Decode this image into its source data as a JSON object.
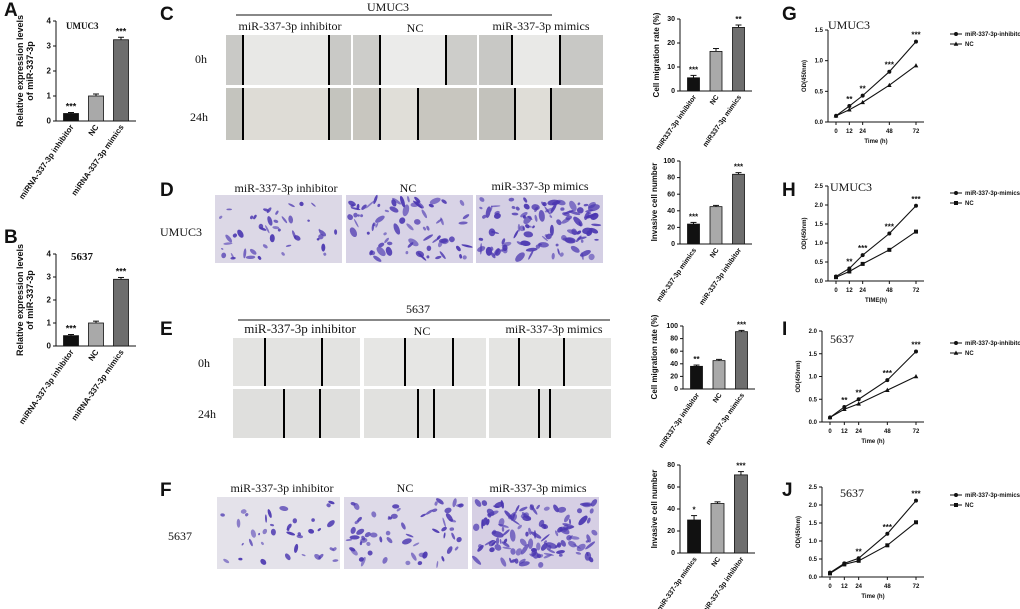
{
  "panel_labels": {
    "A": "A",
    "B": "B",
    "C": "C",
    "D": "D",
    "E": "E",
    "F": "F",
    "G": "G",
    "H": "H",
    "I": "I",
    "J": "J"
  },
  "panel_c": {
    "title": "UMUC3",
    "columns": [
      "miR-337-3p inhibitor",
      "NC",
      "miR-337-3p mimics"
    ],
    "rows": [
      "0h",
      "24h"
    ]
  },
  "panel_d": {
    "row_label": "UMUC3",
    "columns": [
      "miR-337-3p inhibitor",
      "NC",
      "miR-337-3p mimics"
    ]
  },
  "panel_e": {
    "title": "5637",
    "columns": [
      "miR-337-3p inhibitor",
      "NC",
      "miR-337-3p mimics"
    ],
    "rows": [
      "0h",
      "24h"
    ]
  },
  "panel_f": {
    "row_label": "5637",
    "columns": [
      "miR-337-3p inhibitor",
      "NC",
      "miR-337-3p mimics"
    ]
  },
  "colors": {
    "dark_bar": "#111111",
    "nc_bar": "#a9a9a9",
    "high_bar": "#6e6e6e",
    "dye": "#4a36b0"
  },
  "chart_data": [
    {
      "id": "A",
      "type": "bar",
      "inset_label": "UMUC3",
      "ylabel": "Relative expression levels\nof miR-337-3p",
      "categories": [
        "miRNA-337-3p inhibitor",
        "NC",
        "miRNA-337-3p mimics"
      ],
      "values": [
        0.3,
        1.0,
        3.25
      ],
      "errors": [
        0.04,
        0.08,
        0.1
      ],
      "significance": [
        "***",
        "",
        "***"
      ],
      "ylim": [
        0,
        4
      ],
      "yticks": [
        0,
        1,
        2,
        3,
        4
      ]
    },
    {
      "id": "B",
      "type": "bar",
      "inset_label": "5637",
      "ylabel": "Relative expression levels\nof miR-337-3p",
      "categories": [
        "miRNA-337-3p inhibitor",
        "NC",
        "miRNA-337-3p mimics"
      ],
      "values": [
        0.45,
        1.0,
        2.9
      ],
      "errors": [
        0.05,
        0.08,
        0.08
      ],
      "significance": [
        "***",
        "",
        "***"
      ],
      "ylim": [
        0,
        4
      ],
      "yticks": [
        0,
        1,
        2,
        3,
        4
      ]
    },
    {
      "id": "C",
      "type": "bar",
      "ylabel": "Cell migration rate (%)",
      "categories": [
        "miR337-3p inhibitor",
        "NC",
        "miR337-3p mimics"
      ],
      "values": [
        5.5,
        16.5,
        26.5
      ],
      "errors": [
        1.0,
        1.2,
        1.0
      ],
      "significance": [
        "***",
        "",
        "**"
      ],
      "ylim": [
        0,
        30
      ],
      "yticks": [
        0,
        10,
        20,
        30
      ]
    },
    {
      "id": "D",
      "type": "bar",
      "ylabel": "Invasive cell number",
      "categories": [
        "miR-337-3p mimics",
        "NC",
        "miR-337-3p inhibitor"
      ],
      "values": [
        24,
        45,
        84
      ],
      "errors": [
        2,
        1.5,
        2
      ],
      "significance": [
        "***",
        "",
        "***"
      ],
      "ylim": [
        0,
        100
      ],
      "yticks": [
        0,
        20,
        40,
        60,
        80,
        100
      ]
    },
    {
      "id": "E",
      "type": "bar",
      "ylabel": "Cell migration rate (%)",
      "categories": [
        "miR337-3p inhibitor",
        "NC",
        "miR337-3p mimics"
      ],
      "values": [
        36,
        45,
        91
      ],
      "errors": [
        2,
        2,
        2
      ],
      "significance": [
        "**",
        "",
        "***"
      ],
      "ylim": [
        0,
        100
      ],
      "yticks": [
        0,
        20,
        40,
        60,
        80,
        100
      ]
    },
    {
      "id": "F",
      "type": "bar",
      "ylabel": "Invasive cell number",
      "categories": [
        "miR-337-3p mimics",
        "NC",
        "miR-337-3p inhibitor"
      ],
      "values": [
        30,
        45,
        71
      ],
      "errors": [
        4,
        1.5,
        3
      ],
      "significance": [
        "*",
        "",
        "***"
      ],
      "ylim": [
        0,
        80
      ],
      "yticks": [
        0,
        20,
        40,
        60,
        80
      ]
    },
    {
      "id": "G",
      "type": "line",
      "inset_label": "UMUC3",
      "xlabel": "Time (h)",
      "ylabel": "OD(450nm)",
      "x": [
        0,
        12,
        24,
        48,
        72
      ],
      "ylim": [
        0,
        1.5
      ],
      "yticks": [
        0.0,
        0.5,
        1.0,
        1.5
      ],
      "series": [
        {
          "name": "miR-337-3p-inhibitor",
          "values": [
            0.1,
            0.26,
            0.43,
            0.82,
            1.31
          ],
          "marker": "circle"
        },
        {
          "name": "NC",
          "values": [
            0.1,
            0.2,
            0.32,
            0.6,
            0.92
          ],
          "marker": "triangle"
        }
      ],
      "significance": [
        "",
        "**",
        "**",
        "***",
        "***"
      ]
    },
    {
      "id": "H",
      "type": "line",
      "inset_label": "UMUC3",
      "xlabel": "TIME(h)",
      "ylabel": "OD(450nm)",
      "x": [
        0,
        12,
        24,
        48,
        72
      ],
      "ylim": [
        0,
        2.5
      ],
      "yticks": [
        0.0,
        0.5,
        1.0,
        1.5,
        2.0,
        2.5
      ],
      "series": [
        {
          "name": "miR-337-3p-mimics",
          "values": [
            0.12,
            0.33,
            0.68,
            1.25,
            1.98
          ],
          "marker": "circle"
        },
        {
          "name": "NC",
          "values": [
            0.1,
            0.25,
            0.45,
            0.82,
            1.3
          ],
          "marker": "square"
        }
      ],
      "significance": [
        "",
        "**",
        "***",
        "***",
        "***"
      ]
    },
    {
      "id": "I",
      "type": "line",
      "inset_label": "5637",
      "xlabel": "Time (h)",
      "ylabel": "OD(450nm)",
      "x": [
        0,
        12,
        24,
        48,
        72
      ],
      "ylim": [
        0,
        2.0
      ],
      "yticks": [
        0.0,
        0.5,
        1.0,
        1.5,
        2.0
      ],
      "series": [
        {
          "name": "miR-337-3p-inhibitor",
          "values": [
            0.1,
            0.33,
            0.5,
            0.92,
            1.55
          ],
          "marker": "circle"
        },
        {
          "name": "NC",
          "values": [
            0.1,
            0.28,
            0.4,
            0.7,
            1.0
          ],
          "marker": "triangle"
        }
      ],
      "significance": [
        "",
        "**",
        "**",
        "***",
        "***"
      ]
    },
    {
      "id": "J",
      "type": "line",
      "inset_label": "5637",
      "xlabel": "Time (h)",
      "ylabel": "OD(450nm)",
      "x": [
        0,
        12,
        24,
        48,
        72
      ],
      "ylim": [
        0,
        2.5
      ],
      "yticks": [
        0.0,
        0.5,
        1.0,
        1.5,
        2.0,
        2.5
      ],
      "series": [
        {
          "name": "miR-337-3p-mimics",
          "values": [
            0.12,
            0.38,
            0.52,
            1.2,
            2.12
          ],
          "marker": "circle"
        },
        {
          "name": "NC",
          "values": [
            0.1,
            0.35,
            0.45,
            0.88,
            1.52
          ],
          "marker": "square"
        }
      ],
      "significance": [
        "",
        "",
        "**",
        "***",
        "***"
      ]
    }
  ]
}
